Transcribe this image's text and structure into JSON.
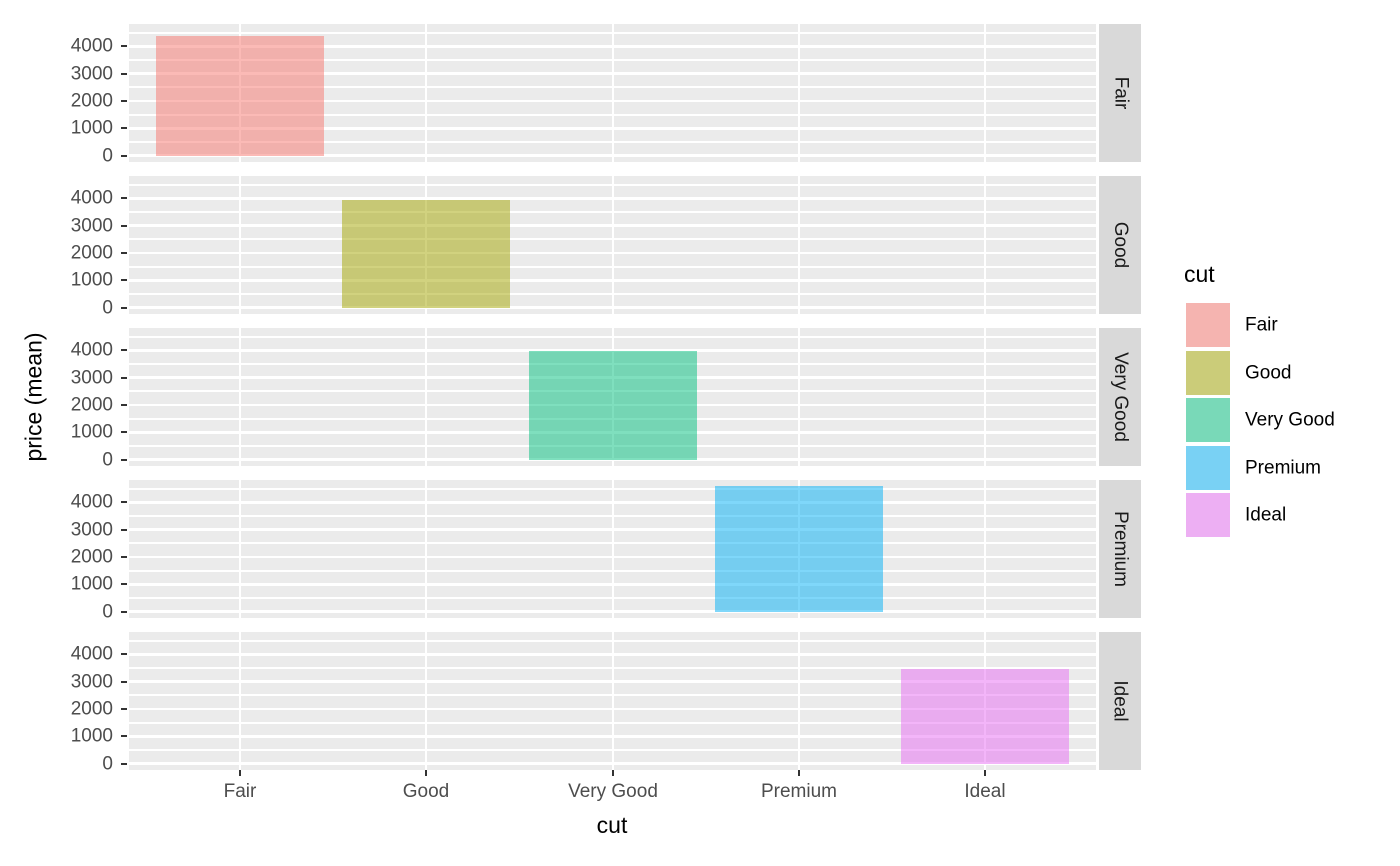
{
  "chart_data": {
    "type": "bar",
    "title": "",
    "xlabel": "cut",
    "ylabel": "price (mean)",
    "facet_variable": "cut",
    "facet_strip_side": "right",
    "categories": [
      "Fair",
      "Good",
      "Very Good",
      "Premium",
      "Ideal"
    ],
    "facets": [
      {
        "label": "Fair",
        "category": "Fair",
        "value": 4360
      },
      {
        "label": "Good",
        "category": "Good",
        "value": 3930
      },
      {
        "label": "Very Good",
        "category": "Very Good",
        "value": 3980
      },
      {
        "label": "Premium",
        "category": "Premium",
        "value": 4580
      },
      {
        "label": "Ideal",
        "category": "Ideal",
        "value": 3460
      }
    ],
    "y_ticks": [
      0,
      1000,
      2000,
      3000,
      4000
    ],
    "y_minor_ticks": [
      500,
      1500,
      2500,
      3500,
      4500
    ],
    "ylim": [
      -229,
      4813
    ],
    "grid": true,
    "fill_alpha": 0.5,
    "legend": {
      "position": "right",
      "title": "cut",
      "entries": [
        {
          "label": "Fair",
          "color": "#F8766D"
        },
        {
          "label": "Good",
          "color": "#A3A500"
        },
        {
          "label": "Very Good",
          "color": "#00BF7D"
        },
        {
          "label": "Premium",
          "color": "#00B0F6"
        },
        {
          "label": "Ideal",
          "color": "#E76BF3"
        }
      ]
    }
  },
  "colors": {
    "figure_background": "#FFFFFF",
    "panel_background": "#EBEBEB",
    "strip_background": "#D9D9D9",
    "gridline": "#FFFFFF",
    "axis_text": "#4D4D4D",
    "strip_text": "#1A1A1A",
    "tick_mark": "#333333",
    "axis_title": "#000000",
    "legend_key_background": "#F2F2F2"
  }
}
